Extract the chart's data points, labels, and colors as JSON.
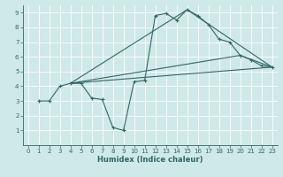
{
  "xlabel": "Humidex (Indice chaleur)",
  "background_color": "#cfe8e8",
  "grid_color": "#b0d8d8",
  "line_color": "#336666",
  "xlim": [
    -0.5,
    23.5
  ],
  "ylim": [
    0,
    9.5
  ],
  "xticks": [
    0,
    1,
    2,
    3,
    4,
    5,
    6,
    7,
    8,
    9,
    10,
    11,
    12,
    13,
    14,
    15,
    16,
    17,
    18,
    19,
    20,
    21,
    22,
    23
  ],
  "yticks": [
    1,
    2,
    3,
    4,
    5,
    6,
    7,
    8,
    9
  ],
  "line1_x": [
    1,
    2,
    3,
    4,
    5,
    6,
    7,
    8,
    9,
    10,
    11,
    12,
    13,
    14,
    15,
    16,
    17,
    18,
    19,
    20,
    21,
    22,
    23
  ],
  "line1_y": [
    3.0,
    3.0,
    4.0,
    4.2,
    4.2,
    3.2,
    3.1,
    1.2,
    1.0,
    4.3,
    4.4,
    8.8,
    8.95,
    8.5,
    9.2,
    8.8,
    8.2,
    7.2,
    7.0,
    6.1,
    5.8,
    5.4,
    5.3
  ],
  "line2_x": [
    4,
    23
  ],
  "line2_y": [
    4.2,
    5.3
  ],
  "line3_x": [
    4,
    20,
    23
  ],
  "line3_y": [
    4.2,
    6.1,
    5.3
  ],
  "line4_x": [
    4,
    15,
    23
  ],
  "line4_y": [
    4.2,
    9.2,
    5.3
  ]
}
